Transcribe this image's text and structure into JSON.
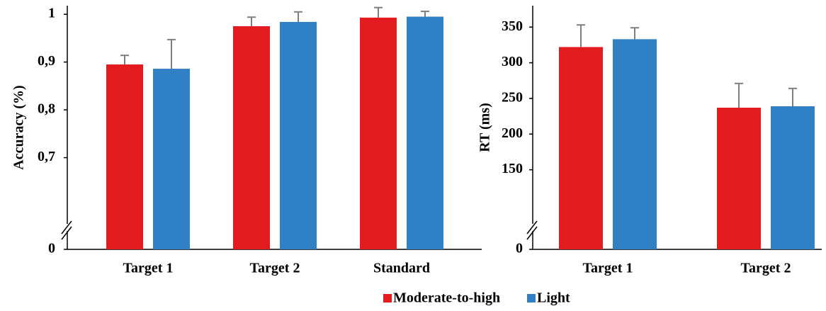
{
  "charts": [
    {
      "type": "bar",
      "y_label": "Accuracy (%)",
      "categories": [
        "Target 1",
        "Target 2",
        "Standard"
      ],
      "series": [
        {
          "name": "Moderate-to-high",
          "color": "#e31b1f",
          "values": [
            0.895,
            0.975,
            0.993
          ],
          "errors": [
            0.019,
            0.019,
            0.021
          ]
        },
        {
          "name": "Light",
          "color": "#2f80c4",
          "values": [
            0.886,
            0.984,
            0.995
          ],
          "errors": [
            0.061,
            0.021,
            0.011
          ]
        }
      ],
      "ylim": [
        0,
        1.018
      ],
      "y_break": [
        0,
        0.6
      ],
      "yticks": [
        0,
        {
          "value": 0.7,
          "label": "0,7"
        },
        {
          "value": 0.8,
          "label": "0,8"
        },
        {
          "value": 0.9,
          "label": "0,9"
        },
        1
      ]
    },
    {
      "type": "bar",
      "y_label": "RT (ms)",
      "categories": [
        "Target 1",
        "Target 2"
      ],
      "series": [
        {
          "color": "#e31b1f",
          "values": [
            322,
            237
          ],
          "errors": [
            31,
            34
          ]
        },
        {
          "color": "#2f80c4",
          "values": [
            333,
            239
          ],
          "errors": [
            16,
            25
          ]
        }
      ],
      "ylim": [
        0,
        380
      ],
      "y_break": [
        0,
        100
      ],
      "yticks": [
        0,
        150,
        200,
        250,
        300,
        350
      ]
    }
  ]
}
